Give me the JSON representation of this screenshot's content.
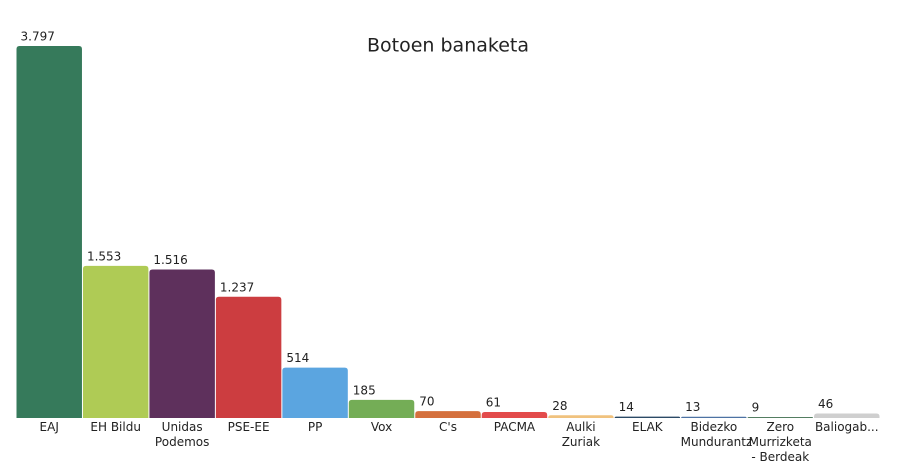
{
  "chart_data": {
    "type": "bar",
    "title": "Botoen banaketa",
    "categories": [
      "EAJ",
      "EH Bildu",
      "Unidas Podemos",
      "PSE-EE",
      "PP",
      "Vox",
      "C's",
      "PACMA",
      "Aulki Zuriak",
      "ELAK",
      "Bidezko Mundurantz",
      "Zero Murrizketa - Berdeak",
      "Baliogab..."
    ],
    "values": [
      3797,
      1553,
      1516,
      1237,
      514,
      185,
      70,
      61,
      28,
      14,
      13,
      9,
      46
    ],
    "value_labels": [
      "3.797",
      "1.553",
      "1.516",
      "1.237",
      "514",
      "185",
      "70",
      "61",
      "28",
      "14",
      "13",
      "9",
      "46"
    ],
    "colors": [
      "#367a5b",
      "#afcb55",
      "#5e305c",
      "#cc3d40",
      "#5ba5e0",
      "#74ad56",
      "#d5703d",
      "#e34b4b",
      "#f0c27e",
      "#2b4a66",
      "#4d72a3",
      "#3b6b4b",
      "#cfcfcf"
    ]
  }
}
